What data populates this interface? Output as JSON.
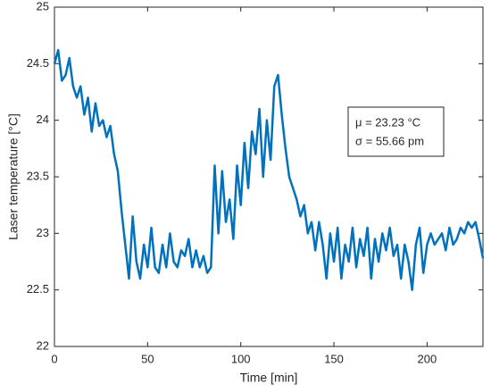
{
  "chart_data": {
    "type": "line",
    "x_label": "Time [min]",
    "y_label": "Laser temperature [°C]",
    "annotation": [
      "μ = 23.23 °C",
      "σ = 55.66 pm"
    ],
    "xlim": [
      0,
      230
    ],
    "xticks": [
      0,
      50,
      100,
      150,
      200
    ],
    "ylim": [
      22,
      25
    ],
    "yticks": [
      22,
      22.5,
      23,
      23.5,
      24,
      24.5,
      25
    ],
    "series": [
      {
        "color": "#0072BD",
        "x": [
          0,
          2,
          4,
          6,
          8,
          10,
          12,
          14,
          16,
          18,
          20,
          22,
          24,
          26,
          28,
          30,
          32,
          34,
          36,
          38,
          40,
          42,
          44,
          46,
          48,
          50,
          52,
          54,
          56,
          58,
          60,
          62,
          64,
          66,
          68,
          70,
          72,
          74,
          76,
          78,
          80,
          82,
          84,
          86,
          88,
          90,
          92,
          94,
          96,
          98,
          100,
          102,
          104,
          106,
          108,
          110,
          112,
          114,
          116,
          118,
          120,
          122,
          124,
          126,
          128,
          130,
          132,
          134,
          136,
          138,
          140,
          142,
          144,
          146,
          148,
          150,
          152,
          154,
          156,
          158,
          160,
          162,
          164,
          166,
          168,
          170,
          172,
          174,
          176,
          178,
          180,
          182,
          184,
          186,
          188,
          190,
          192,
          194,
          196,
          198,
          200,
          202,
          204,
          206,
          208,
          210,
          212,
          214,
          216,
          218,
          220,
          222,
          224,
          226,
          228,
          230
        ],
        "values": [
          24.5,
          24.62,
          24.35,
          24.4,
          24.55,
          24.3,
          24.2,
          24.3,
          24.05,
          24.2,
          23.9,
          24.15,
          23.95,
          24.0,
          23.85,
          23.95,
          23.7,
          23.55,
          23.2,
          22.9,
          22.6,
          23.15,
          22.75,
          22.6,
          22.9,
          22.7,
          23.05,
          22.7,
          22.65,
          22.9,
          22.7,
          23.0,
          22.75,
          22.7,
          22.85,
          22.8,
          22.95,
          22.7,
          22.85,
          22.7,
          22.8,
          22.65,
          22.7,
          23.6,
          23.0,
          23.55,
          23.1,
          23.3,
          22.95,
          23.6,
          23.25,
          23.8,
          23.4,
          23.9,
          23.7,
          24.1,
          23.5,
          24.0,
          23.65,
          24.3,
          24.4,
          24.05,
          23.75,
          23.5,
          23.4,
          23.3,
          23.15,
          23.25,
          23.0,
          23.1,
          22.85,
          23.1,
          22.9,
          22.6,
          23.0,
          22.75,
          23.05,
          22.6,
          22.9,
          22.75,
          23.05,
          22.7,
          22.95,
          22.8,
          23.05,
          22.6,
          22.95,
          22.75,
          23.0,
          22.85,
          23.05,
          22.8,
          22.9,
          22.6,
          22.9,
          22.75,
          22.5,
          22.9,
          23.05,
          22.65,
          22.9,
          23.0,
          22.9,
          22.95,
          23.0,
          22.85,
          23.05,
          22.9,
          22.95,
          23.05,
          23.0,
          23.1,
          23.05,
          23.1,
          22.95,
          22.78
        ]
      }
    ]
  }
}
